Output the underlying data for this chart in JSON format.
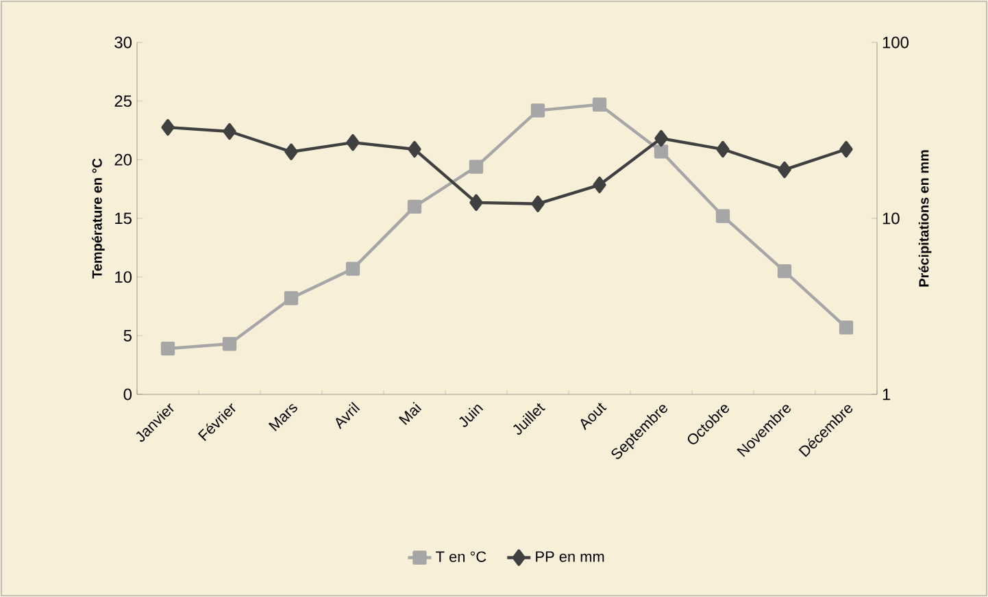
{
  "chart_data": {
    "type": "line",
    "categories": [
      "Janvier",
      "Février",
      "Mars",
      "Avril",
      "Mai",
      "Juin",
      "Juillet",
      "Aout",
      "Septembre",
      "Octobre",
      "Novembre",
      "Décembre"
    ],
    "ylabel": "Température en °C",
    "y2label": "Précipitations en mm",
    "ylim": [
      0,
      30
    ],
    "yticks": [
      0,
      5,
      10,
      15,
      20,
      25,
      30
    ],
    "y2lim": [
      1,
      100
    ],
    "y2ticks": [
      1,
      10,
      100
    ],
    "log": "y2",
    "legend": "bottom",
    "line_style": "solid",
    "series": [
      {
        "name": "T en °C",
        "color": "#a6a6a6",
        "marker": "square",
        "values": [
          3.9,
          4.3,
          8.2,
          10.7,
          16.0,
          19.4,
          24.2,
          24.7,
          20.7,
          15.2,
          10.5,
          5.7
        ]
      },
      {
        "name": "PP en mm",
        "color": "#404040",
        "marker": "diamond",
        "axis": "y2",
        "values": [
          32.9,
          31.2,
          23.9,
          27.0,
          24.7,
          12.3,
          12.1,
          15.5,
          28.5,
          24.7,
          18.9,
          24.7
        ]
      }
    ]
  }
}
